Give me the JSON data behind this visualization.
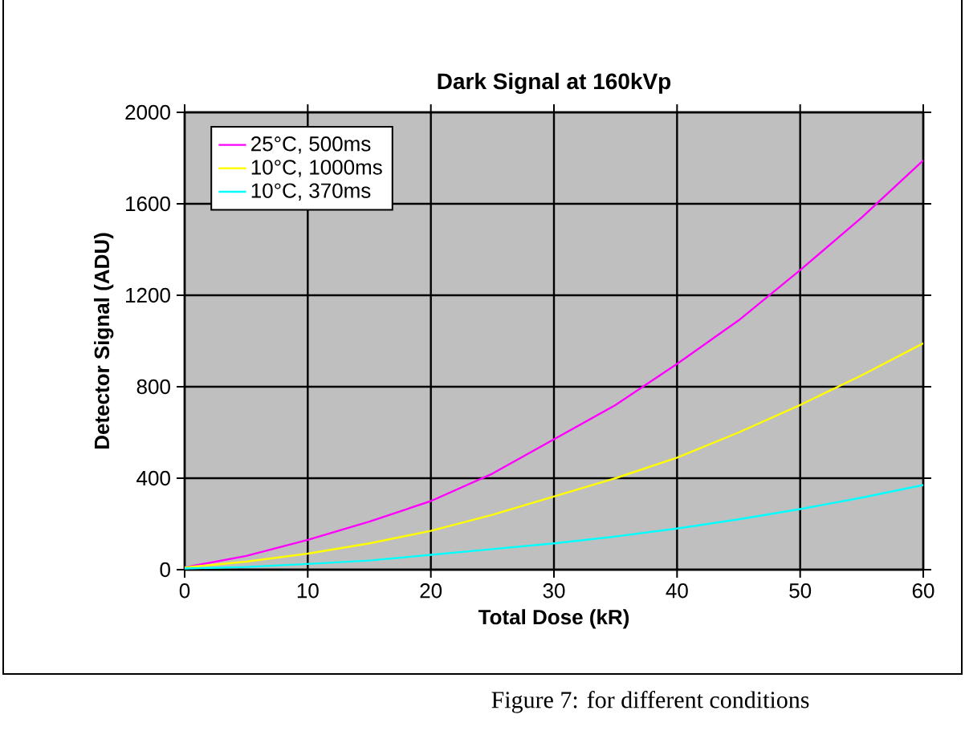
{
  "chart_data": {
    "type": "line",
    "title": "Dark Signal at 160kVp",
    "xlabel": "Total Dose (kR)",
    "ylabel": "Detector Signal (ADU)",
    "annotations": [
      "Figure 7: for different conditions"
    ],
    "xlim": [
      0,
      60
    ],
    "ylim": [
      0,
      2000
    ],
    "xticks": [
      0,
      10,
      20,
      30,
      40,
      50,
      60
    ],
    "yticks": [
      0,
      400,
      800,
      1200,
      1600,
      2000
    ],
    "grid": true,
    "legend": "top left",
    "marker": "none",
    "line_style": "solid",
    "x": [
      0,
      5,
      10,
      15,
      20,
      25,
      30,
      35,
      40,
      45,
      50,
      55,
      60
    ],
    "series": [
      {
        "name": "25°C, 500ms",
        "color": "#ff00ff",
        "values": [
          10,
          60,
          130,
          210,
          300,
          420,
          570,
          720,
          900,
          1090,
          1310,
          1540,
          1790
        ]
      },
      {
        "name": "10°C, 1000ms",
        "color": "#ffff00",
        "values": [
          10,
          35,
          70,
          115,
          170,
          240,
          320,
          400,
          490,
          600,
          720,
          850,
          990
        ]
      },
      {
        "name": "10°C, 370ms",
        "color": "#00ffff",
        "values": [
          5,
          12,
          25,
          40,
          65,
          90,
          115,
          145,
          180,
          220,
          265,
          315,
          370
        ]
      }
    ]
  }
}
